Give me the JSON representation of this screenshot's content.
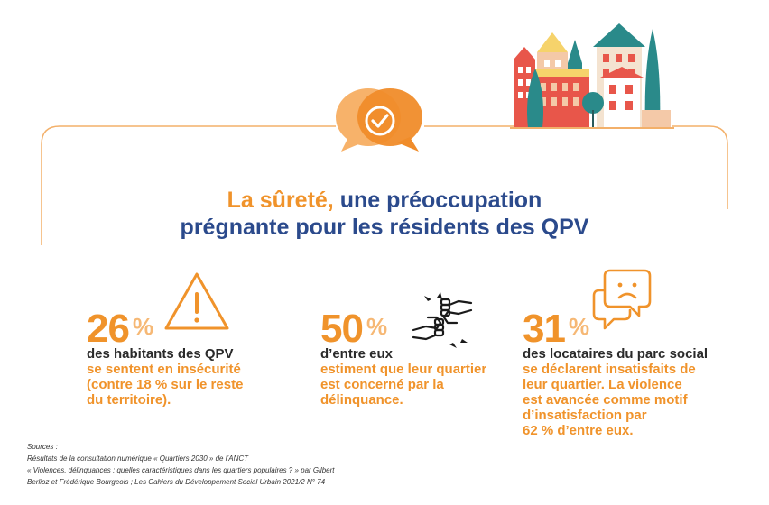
{
  "title": {
    "part1_highlight": "La sûreté,",
    "part1_rest": " une préoccupation",
    "part2": "prégnante pour les résidents des QPV"
  },
  "stats": [
    {
      "value": "26",
      "unit": "%",
      "icon": "warning-triangle-icon",
      "lead": "des habitants des QPV",
      "detail": [
        "se sentent en insécurité",
        "(contre 18 % sur le reste",
        "du territoire)."
      ]
    },
    {
      "value": "50",
      "unit": "%",
      "icon": "fist-bump-icon",
      "lead": "d’entre eux",
      "detail": [
        "estiment que leur quartier",
        "est concerné par la",
        "délinquance."
      ]
    },
    {
      "value": "31",
      "unit": "%",
      "icon": "sad-speech-bubble-icon",
      "lead": "des locataires du parc social",
      "detail": [
        "se déclarent insatisfaits de",
        "leur quartier. La violence",
        "est avancée comme motif",
        "d’insatisfaction par",
        "62 % d’entre eux."
      ]
    }
  ],
  "sources": {
    "label": "Sources :",
    "lines": [
      "Résultats de la consultation numérique « Quartiers 2030 » de l’ANCT",
      "« Violences, délinquances : quelles caractéristiques dans les quartiers populaires ? » par Gilbert",
      "Berlioz et Frédérique Bourgeois ; Les Cahiers du Développement Social Urbain 2021/2 N° 74"
    ]
  },
  "colors": {
    "orange": "#f0932b",
    "blue": "#2b4a8c",
    "light_orange": "#f6b875"
  }
}
